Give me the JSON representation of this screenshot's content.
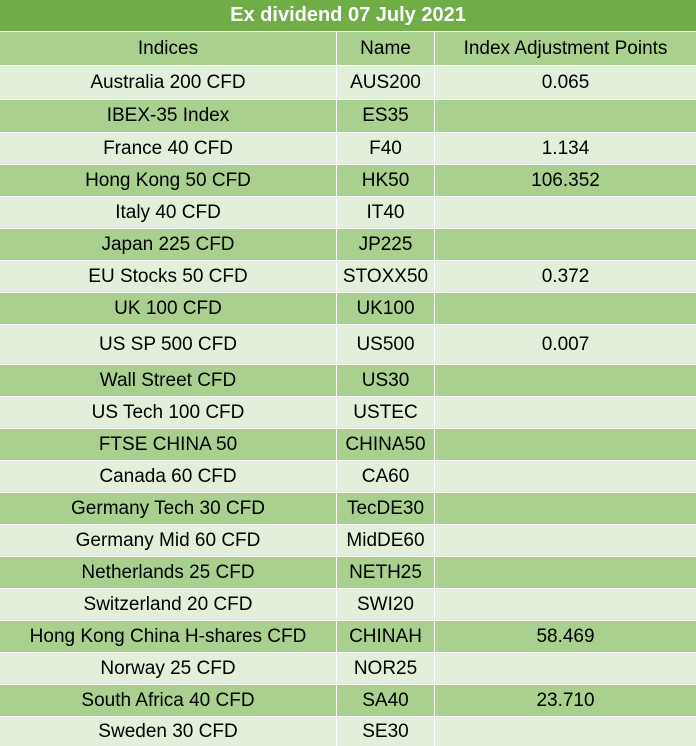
{
  "title": "Ex dividend 07 July 2021",
  "header": {
    "indices": "Indices",
    "name": "Name",
    "points": "Index Adjustment Points"
  },
  "rows": [
    {
      "index": "Australia 200 CFD",
      "name": "AUS200",
      "points": "0.065"
    },
    {
      "index": "IBEX-35 Index",
      "name": "ES35",
      "points": ""
    },
    {
      "index": "France 40 CFD",
      "name": "F40",
      "points": "1.134"
    },
    {
      "index": "Hong Kong 50 CFD",
      "name": "HK50",
      "points": "106.352"
    },
    {
      "index": "Italy 40 CFD",
      "name": "IT40",
      "points": ""
    },
    {
      "index": "Japan 225 CFD",
      "name": "JP225",
      "points": ""
    },
    {
      "index": "EU Stocks 50 CFD",
      "name": "STOXX50",
      "points": "0.372"
    },
    {
      "index": "UK 100 CFD",
      "name": "UK100",
      "points": ""
    },
    {
      "index": "US SP 500 CFD",
      "name": "US500",
      "points": "0.007"
    },
    {
      "index": "Wall Street CFD",
      "name": "US30",
      "points": ""
    },
    {
      "index": "US Tech 100 CFD",
      "name": "USTEC",
      "points": ""
    },
    {
      "index": "FTSE CHINA 50",
      "name": "CHINA50",
      "points": ""
    },
    {
      "index": "Canada 60 CFD",
      "name": "CA60",
      "points": ""
    },
    {
      "index": "Germany Tech 30 CFD",
      "name": "TecDE30",
      "points": ""
    },
    {
      "index": "Germany Mid 60 CFD",
      "name": "MidDE60",
      "points": ""
    },
    {
      "index": "Netherlands 25 CFD",
      "name": "NETH25",
      "points": ""
    },
    {
      "index": "Switzerland 20 CFD",
      "name": "SWI20",
      "points": ""
    },
    {
      "index": "Hong Kong China H-shares CFD",
      "name": "CHINAH",
      "points": "58.469"
    },
    {
      "index": "Norway 25 CFD",
      "name": "NOR25",
      "points": ""
    },
    {
      "index": "South Africa 40 CFD",
      "name": "SA40",
      "points": "23.710"
    },
    {
      "index": "Sweden 30 CFD",
      "name": "SE30",
      "points": ""
    }
  ]
}
